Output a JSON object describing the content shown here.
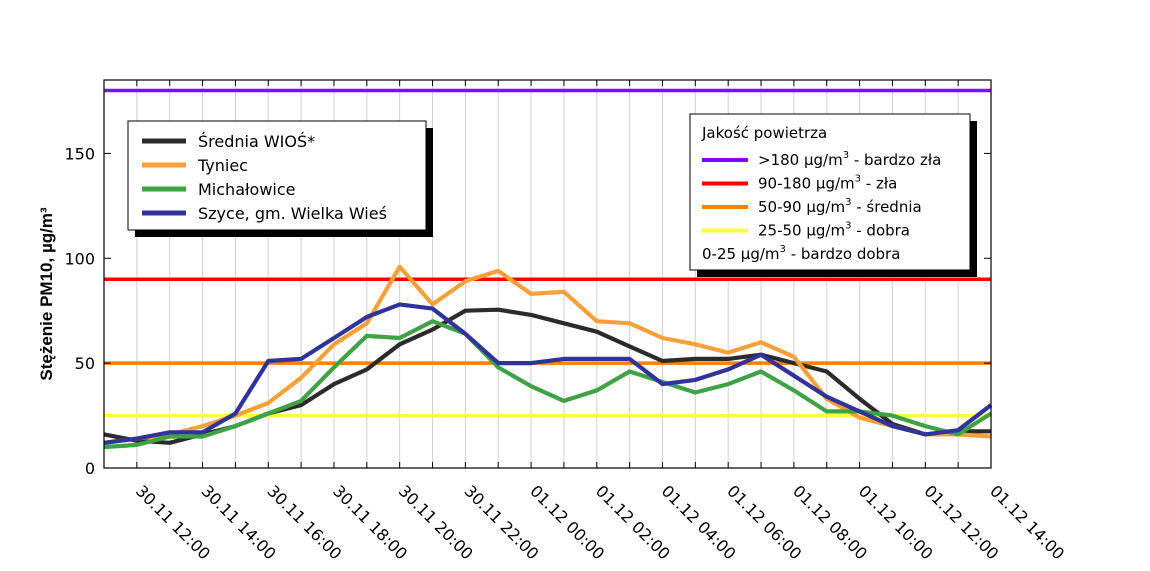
{
  "chart_data": {
    "type": "line",
    "ylabel": "Stężenie PM10, µg/m³",
    "ylim": [
      0,
      185
    ],
    "yticks": [
      0,
      50,
      100,
      150
    ],
    "x": [
      "30.11 11:00",
      "30.11 12:00",
      "30.11 13:00",
      "30.11 14:00",
      "30.11 15:00",
      "30.11 16:00",
      "30.11 17:00",
      "30.11 18:00",
      "30.11 19:00",
      "30.11 20:00",
      "30.11 21:00",
      "30.11 22:00",
      "30.11 23:00",
      "01.12 00:00",
      "01.12 01:00",
      "01.12 02:00",
      "01.12 03:00",
      "01.12 04:00",
      "01.12 05:00",
      "01.12 06:00",
      "01.12 07:00",
      "01.12 08:00",
      "01.12 09:00",
      "01.12 10:00",
      "01.12 11:00",
      "01.12 12:00",
      "01.12 13:00",
      "01.12 14:00"
    ],
    "xtick_labels": [
      "30.11 12:00",
      "30.11 14:00",
      "30.11 16:00",
      "30.11 18:00",
      "30.11 20:00",
      "30.11 22:00",
      "01.12 00:00",
      "01.12 02:00",
      "01.12 04:00",
      "01.12 06:00",
      "01.12 08:00",
      "01.12 10:00",
      "01.12 12:00",
      "01.12 14:00"
    ],
    "series": [
      {
        "name": "Średnia WIOŚ*",
        "color": "#2b2b2b",
        "values": [
          16,
          13,
          12,
          16,
          20,
          26,
          30,
          40,
          47,
          59,
          66,
          75,
          75.5,
          73,
          69,
          65,
          58,
          51,
          52,
          52,
          54,
          50,
          46,
          33,
          21,
          16,
          17.5,
          17.5
        ]
      },
      {
        "name": "Tyniec",
        "color": "#f7a03a",
        "values": [
          12,
          14,
          16,
          20,
          25,
          31,
          43,
          59,
          69,
          96,
          78,
          89,
          94,
          83,
          84,
          70,
          69,
          62,
          59,
          55,
          60,
          53,
          33,
          24,
          20,
          16,
          16,
          15
        ]
      },
      {
        "name": "Michałowice",
        "color": "#3fa244",
        "values": [
          10,
          11,
          15,
          15,
          20,
          26,
          32,
          48,
          63,
          62,
          70,
          64,
          48,
          39,
          32,
          37,
          46,
          41,
          36,
          40,
          46,
          37,
          27,
          27,
          25,
          20,
          16,
          26
        ]
      },
      {
        "name": "Szyce, gm. Wielka Wieś",
        "color": "#303399",
        "values": [
          12,
          14,
          17,
          17,
          26,
          51,
          52,
          62,
          72,
          78,
          76,
          64,
          50,
          50,
          52,
          52,
          52,
          40,
          42,
          47,
          54,
          44,
          34,
          27,
          20,
          16,
          18,
          30
        ]
      }
    ],
    "thresholds": [
      {
        "value": 180,
        "color": "#8a00ff",
        "label": ">180 µg/m³ - bardzo zła"
      },
      {
        "value": 90,
        "color": "#ff0000",
        "label": "90-180 µg/m³ - zła"
      },
      {
        "value": 50,
        "color": "#ff8000",
        "label": "50-90 µg/m³ - średnia"
      },
      {
        "value": 25,
        "color": "#ffff40",
        "label": "25-50 µg/m³ - dobra"
      }
    ],
    "quality_legend": {
      "title": "Jakość powietrza",
      "items": [
        {
          "main": ">180 µg/m",
          "sup": "3",
          "rest": " - bardzo zła",
          "color": "#8a00ff"
        },
        {
          "main": "90-180 µg/m",
          "sup": "3",
          "rest": " - zła",
          "color": "#ff0000"
        },
        {
          "main": "50-90 µg/m",
          "sup": "3",
          "rest": " - średnia",
          "color": "#ff8000"
        },
        {
          "main": "25-50 µg/m",
          "sup": "3",
          "rest": " - dobra",
          "color": "#ffff40"
        },
        {
          "main": "0-25 µg/m",
          "sup": "3",
          "rest": " - bardzo dobra",
          "color": null
        }
      ]
    },
    "series_legend_placement": "top-left",
    "quality_legend_placement": "top-right",
    "grid": "vertical"
  }
}
